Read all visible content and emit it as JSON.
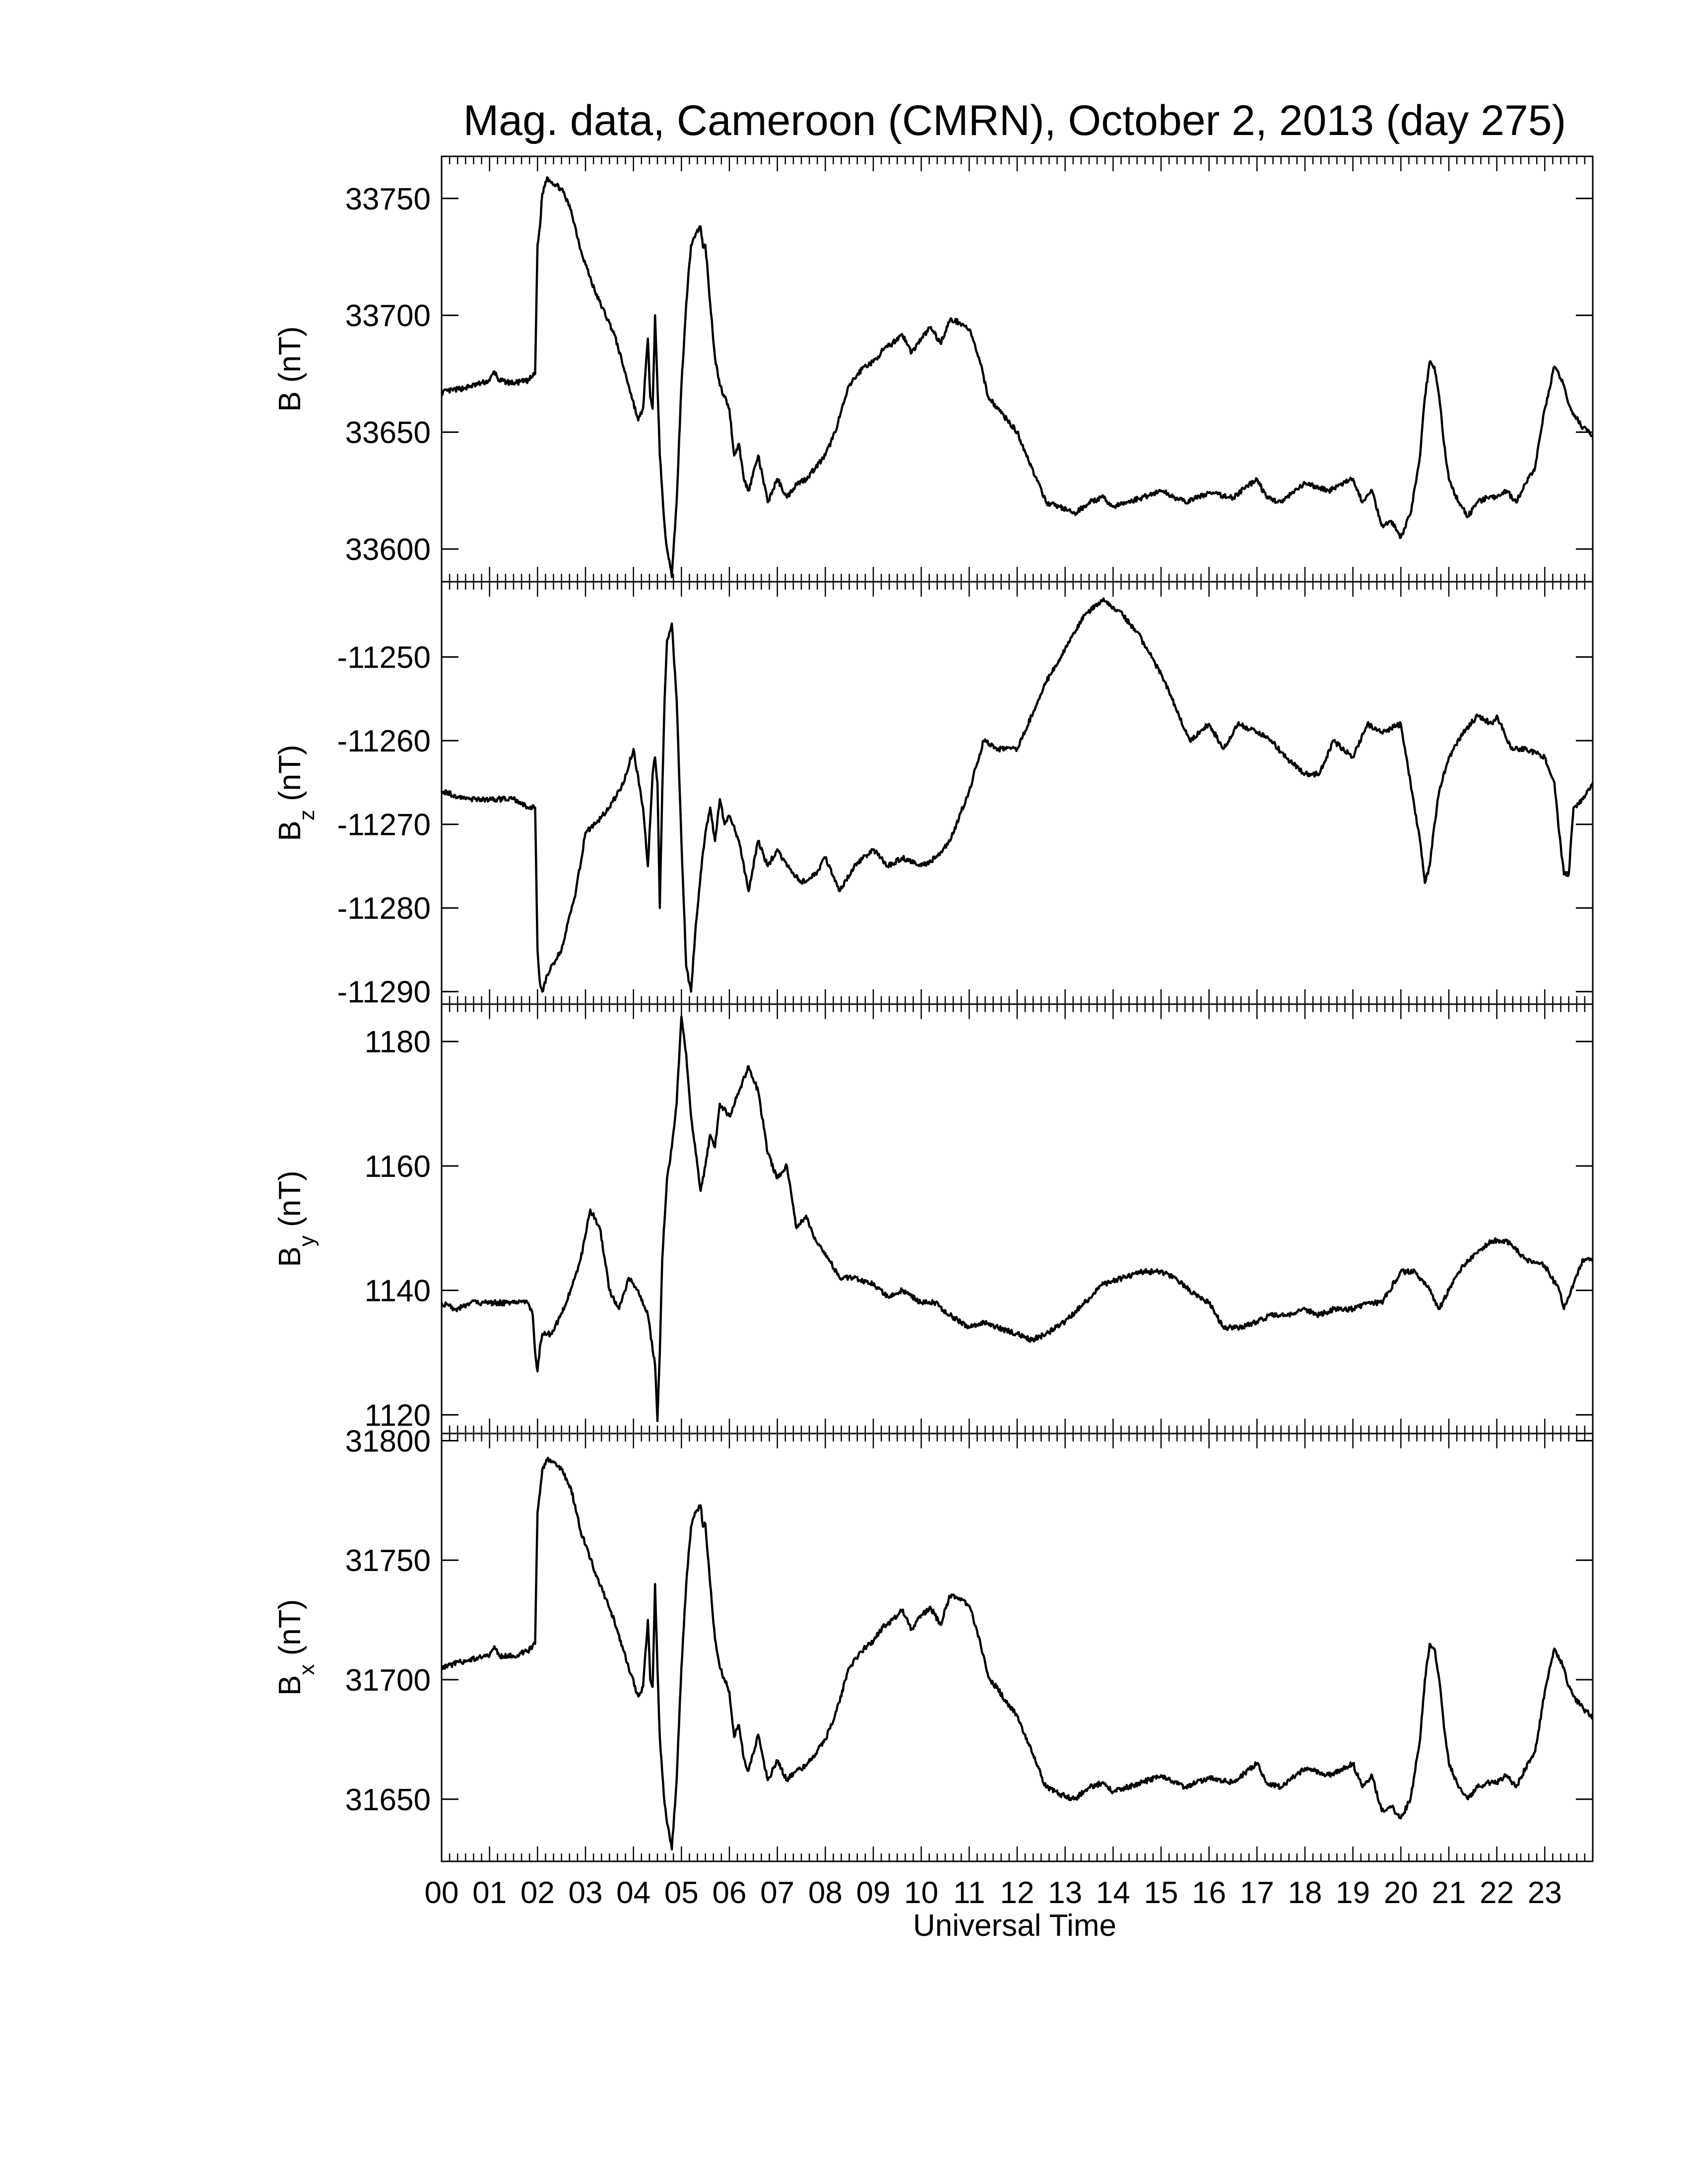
{
  "figure": {
    "title": "Mag. data, Cameroon (CMRN), October 2, 2013 (day 275)",
    "xlabel": "Universal Time",
    "x_tick_labels": [
      "00",
      "01",
      "02",
      "03",
      "04",
      "05",
      "06",
      "07",
      "08",
      "09",
      "10",
      "11",
      "12",
      "13",
      "14",
      "15",
      "16",
      "17",
      "18",
      "19",
      "20",
      "21",
      "22",
      "23"
    ],
    "line_color": "#000000"
  },
  "chart_data": [
    {
      "type": "line",
      "id": "B",
      "ylabel": "B (nT)",
      "ylabel_main": "B",
      "ylabel_sub": "",
      "ylabel_unit": " (nT)",
      "xlim": [
        0,
        24
      ],
      "ylim": [
        33586,
        33768
      ],
      "yticks": [
        33600,
        33650,
        33700,
        33750
      ],
      "x": [
        0,
        0.5,
        1.0,
        1.1,
        1.2,
        1.5,
        1.8,
        1.95,
        2.0,
        2.05,
        2.1,
        2.2,
        2.3,
        2.5,
        2.7,
        2.9,
        3.2,
        3.6,
        3.9,
        4.1,
        4.2,
        4.3,
        4.35,
        4.4,
        4.45,
        4.5,
        4.55,
        4.6,
        4.65,
        4.7,
        4.75,
        4.8,
        4.9,
        5.0,
        5.1,
        5.2,
        5.3,
        5.4,
        5.45,
        5.5,
        5.55,
        5.6,
        5.7,
        5.8,
        5.9,
        6.0,
        6.1,
        6.2,
        6.3,
        6.4,
        6.6,
        6.8,
        7.0,
        7.2,
        7.4,
        7.6,
        7.8,
        8.0,
        8.2,
        8.5,
        8.8,
        9.0,
        9.2,
        9.4,
        9.6,
        9.8,
        10.0,
        10.2,
        10.4,
        10.6,
        10.8,
        11.0,
        11.2,
        11.4,
        11.6,
        11.8,
        12.0,
        12.3,
        12.6,
        12.9,
        13.2,
        13.5,
        13.8,
        14.0,
        14.3,
        14.6,
        15.0,
        15.5,
        16.0,
        16.5,
        17.0,
        17.2,
        17.5,
        18.0,
        18.5,
        19.0,
        19.2,
        19.4,
        19.6,
        19.8,
        20.0,
        20.2,
        20.4,
        20.5,
        20.6,
        20.7,
        20.8,
        20.9,
        21.0,
        21.2,
        21.4,
        21.6,
        21.8,
        22.0,
        22.2,
        22.4,
        22.6,
        22.8,
        23.0,
        23.2,
        23.4,
        23.5,
        23.6,
        23.8,
        24.0
      ],
      "values": [
        33667,
        33669,
        33672,
        33676,
        33672,
        33671,
        33672,
        33675,
        33730,
        33738,
        33752,
        33759,
        33757,
        33754,
        33745,
        33728,
        33710,
        33692,
        33670,
        33655,
        33660,
        33690,
        33665,
        33660,
        33700,
        33670,
        33640,
        33625,
        33610,
        33600,
        33595,
        33588,
        33620,
        33670,
        33705,
        33730,
        33735,
        33738,
        33729,
        33730,
        33718,
        33705,
        33682,
        33670,
        33665,
        33660,
        33640,
        33645,
        33630,
        33625,
        33640,
        33620,
        33630,
        33622,
        33628,
        33630,
        33635,
        33640,
        33650,
        33670,
        33678,
        33680,
        33685,
        33688,
        33692,
        33684,
        33690,
        33695,
        33688,
        33698,
        33697,
        33694,
        33682,
        33665,
        33660,
        33655,
        33650,
        33635,
        33620,
        33618,
        33615,
        33620,
        33622,
        33618,
        33620,
        33622,
        33625,
        33620,
        33624,
        33622,
        33630,
        33622,
        33620,
        33628,
        33625,
        33630,
        33620,
        33625,
        33610,
        33612,
        33605,
        33615,
        33640,
        33665,
        33680,
        33678,
        33665,
        33645,
        33630,
        33620,
        33614,
        33620,
        33622,
        33622,
        33625,
        33620,
        33628,
        33635,
        33660,
        33678,
        33670,
        33662,
        33658,
        33652,
        33648
      ]
    },
    {
      "type": "line",
      "id": "Bz",
      "ylabel": "Bz (nT)",
      "ylabel_main": "B",
      "ylabel_sub": "z",
      "ylabel_unit": " (nT)",
      "xlim": [
        0,
        24
      ],
      "ylim": [
        -11291.5,
        -11241
      ],
      "yticks": [
        -11250,
        -11260,
        -11270,
        -11280,
        -11290
      ],
      "x": [
        0,
        0.5,
        1.0,
        1.5,
        1.8,
        1.95,
        2.0,
        2.05,
        2.1,
        2.2,
        2.5,
        2.8,
        3.0,
        3.2,
        3.5,
        3.8,
        4.0,
        4.2,
        4.3,
        4.4,
        4.45,
        4.5,
        4.55,
        4.6,
        4.65,
        4.7,
        4.8,
        4.9,
        5.0,
        5.1,
        5.2,
        5.3,
        5.4,
        5.5,
        5.6,
        5.7,
        5.8,
        5.9,
        6.0,
        6.2,
        6.4,
        6.6,
        6.8,
        7.0,
        7.2,
        7.5,
        7.8,
        8.0,
        8.3,
        8.6,
        9.0,
        9.3,
        9.6,
        10.0,
        10.3,
        10.6,
        11.0,
        11.3,
        11.6,
        12.0,
        12.3,
        12.6,
        13.0,
        13.4,
        13.8,
        14.0,
        14.2,
        14.5,
        14.8,
        15.0,
        15.3,
        15.6,
        16.0,
        16.3,
        16.6,
        17.0,
        17.3,
        17.6,
        18.0,
        18.3,
        18.6,
        19.0,
        19.3,
        19.6,
        20.0,
        20.2,
        20.4,
        20.5,
        20.6,
        20.7,
        20.8,
        21.0,
        21.3,
        21.6,
        21.9,
        22.0,
        22.3,
        22.6,
        23.0,
        23.2,
        23.3,
        23.4,
        23.5,
        23.6,
        23.8,
        24.0
      ],
      "values": [
        -11266,
        -11267,
        -11267,
        -11267,
        -11268,
        -11268,
        -11285,
        -11289,
        -11290,
        -11288,
        -11285,
        -11278,
        -11271,
        -11270,
        -11268,
        -11265,
        -11261,
        -11268,
        -11275,
        -11264,
        -11262,
        -11265,
        -11280,
        -11266,
        -11255,
        -11248,
        -11246,
        -11255,
        -11272,
        -11287,
        -11290,
        -11282,
        -11276,
        -11271,
        -11268,
        -11272,
        -11267,
        -11270,
        -11269,
        -11272,
        -11278,
        -11272,
        -11275,
        -11273,
        -11275,
        -11277,
        -11276,
        -11274,
        -11278,
        -11275,
        -11273,
        -11275,
        -11274,
        -11275,
        -11274,
        -11272,
        -11266,
        -11260,
        -11261,
        -11261,
        -11257,
        -11253,
        -11249,
        -11245,
        -11243,
        -11244,
        -11245,
        -11247,
        -11250,
        -11252,
        -11256,
        -11260,
        -11258,
        -11261,
        -11258,
        -11259,
        -11260,
        -11262,
        -11264,
        -11264,
        -11260,
        -11262,
        -11258,
        -11259,
        -11258,
        -11265,
        -11272,
        -11277,
        -11275,
        -11270,
        -11266,
        -11262,
        -11259,
        -11257,
        -11258,
        -11257,
        -11261,
        -11261,
        -11262,
        -11265,
        -11271,
        -11276,
        -11276,
        -11268,
        -11267,
        -11265
      ]
    },
    {
      "type": "line",
      "id": "By",
      "ylabel": "By (nT)",
      "ylabel_main": "B",
      "ylabel_sub": "y",
      "ylabel_unit": " (nT)",
      "xlim": [
        0,
        24
      ],
      "ylim": [
        1117,
        1186
      ],
      "yticks": [
        1120,
        1140,
        1160,
        1180
      ],
      "x": [
        0,
        0.3,
        0.6,
        1.0,
        1.5,
        1.8,
        1.9,
        1.95,
        2.0,
        2.05,
        2.1,
        2.3,
        2.6,
        2.9,
        3.1,
        3.3,
        3.5,
        3.7,
        3.9,
        4.1,
        4.3,
        4.45,
        4.5,
        4.55,
        4.6,
        4.7,
        4.8,
        4.9,
        5.0,
        5.1,
        5.2,
        5.3,
        5.4,
        5.5,
        5.6,
        5.7,
        5.8,
        6.0,
        6.2,
        6.4,
        6.6,
        6.8,
        7.0,
        7.2,
        7.4,
        7.6,
        7.8,
        8.0,
        8.3,
        8.6,
        9.0,
        9.3,
        9.6,
        10.0,
        10.3,
        10.6,
        11.0,
        11.3,
        11.6,
        12.0,
        12.3,
        12.6,
        13.0,
        13.4,
        13.8,
        14.2,
        14.6,
        15.0,
        15.3,
        15.6,
        16.0,
        16.3,
        16.6,
        17.0,
        17.3,
        17.6,
        18.0,
        18.3,
        18.6,
        19.0,
        19.3,
        19.6,
        20.0,
        20.3,
        20.6,
        20.8,
        21.0,
        21.3,
        21.6,
        21.9,
        22.2,
        22.6,
        23.0,
        23.3,
        23.4,
        23.6,
        23.8,
        24.0
      ],
      "values": [
        1138,
        1137,
        1138,
        1138,
        1138,
        1138,
        1136,
        1130,
        1127,
        1131,
        1133,
        1133,
        1138,
        1145,
        1153,
        1150,
        1140,
        1137,
        1142,
        1140,
        1136,
        1128,
        1119,
        1130,
        1145,
        1158,
        1163,
        1170,
        1184,
        1178,
        1168,
        1162,
        1156,
        1160,
        1165,
        1163,
        1170,
        1168,
        1172,
        1176,
        1172,
        1162,
        1158,
        1160,
        1150,
        1152,
        1148,
        1146,
        1142,
        1142,
        1141,
        1139,
        1140,
        1138,
        1138,
        1136,
        1134,
        1135,
        1134,
        1133,
        1132,
        1133,
        1135,
        1138,
        1141,
        1142,
        1143,
        1143,
        1142,
        1140,
        1138,
        1134,
        1134,
        1135,
        1136,
        1136,
        1137,
        1136,
        1137,
        1137,
        1138,
        1138,
        1143,
        1143,
        1140,
        1137,
        1140,
        1144,
        1146,
        1148,
        1148,
        1145,
        1144,
        1140,
        1137,
        1141,
        1145,
        1145
      ]
    },
    {
      "type": "line",
      "id": "Bx",
      "ylabel": "Bx (nT)",
      "ylabel_main": "B",
      "ylabel_sub": "x",
      "ylabel_unit": " (nT)",
      "xlim": [
        0,
        24
      ],
      "ylim": [
        31624,
        31803
      ],
      "yticks": [
        31650,
        31700,
        31750,
        31800
      ],
      "x": [
        0,
        0.5,
        1.0,
        1.1,
        1.2,
        1.5,
        1.8,
        1.95,
        2.0,
        2.05,
        2.1,
        2.2,
        2.3,
        2.5,
        2.7,
        2.9,
        3.2,
        3.6,
        3.9,
        4.1,
        4.2,
        4.3,
        4.35,
        4.4,
        4.45,
        4.5,
        4.55,
        4.6,
        4.65,
        4.7,
        4.75,
        4.8,
        4.9,
        5.0,
        5.1,
        5.2,
        5.3,
        5.4,
        5.45,
        5.5,
        5.55,
        5.6,
        5.7,
        5.8,
        5.9,
        6.0,
        6.1,
        6.2,
        6.3,
        6.4,
        6.6,
        6.8,
        7.0,
        7.2,
        7.4,
        7.6,
        7.8,
        8.0,
        8.2,
        8.5,
        8.8,
        9.0,
        9.2,
        9.4,
        9.6,
        9.8,
        10.0,
        10.2,
        10.4,
        10.6,
        10.8,
        11.0,
        11.2,
        11.4,
        11.6,
        11.8,
        12.0,
        12.3,
        12.6,
        12.9,
        13.2,
        13.5,
        13.8,
        14.0,
        14.3,
        14.6,
        15.0,
        15.5,
        16.0,
        16.5,
        17.0,
        17.2,
        17.5,
        18.0,
        18.5,
        19.0,
        19.2,
        19.4,
        19.6,
        19.8,
        20.0,
        20.2,
        20.4,
        20.5,
        20.6,
        20.7,
        20.8,
        20.9,
        21.0,
        21.2,
        21.4,
        21.6,
        21.8,
        22.0,
        22.2,
        22.4,
        22.6,
        22.8,
        23.0,
        23.2,
        23.4,
        23.5,
        23.6,
        23.8,
        24.0
      ],
      "values": [
        31705,
        31708,
        31710,
        31714,
        31710,
        31710,
        31712,
        31715,
        31770,
        31778,
        31788,
        31792,
        31791,
        31788,
        31780,
        31762,
        31745,
        31725,
        31705,
        31693,
        31697,
        31725,
        31700,
        31697,
        31740,
        31705,
        31676,
        31661,
        31648,
        31640,
        31635,
        31629,
        31658,
        31705,
        31740,
        31764,
        31770,
        31773,
        31764,
        31765,
        31752,
        31740,
        31717,
        31705,
        31700,
        31695,
        31676,
        31681,
        31667,
        31662,
        31677,
        31658,
        31666,
        31658,
        31662,
        31664,
        31669,
        31675,
        31685,
        31705,
        31713,
        31716,
        31722,
        31725,
        31729,
        31721,
        31727,
        31730,
        31723,
        31735,
        31734,
        31731,
        31718,
        31701,
        31696,
        31690,
        31685,
        31670,
        31655,
        31652,
        31650,
        31655,
        31657,
        31653,
        31655,
        31657,
        31660,
        31655,
        31659,
        31657,
        31665,
        31657,
        31655,
        31663,
        31660,
        31665,
        31655,
        31660,
        31645,
        31647,
        31642,
        31650,
        31675,
        31700,
        31715,
        31713,
        31700,
        31680,
        31665,
        31655,
        31650,
        31655,
        31657,
        31657,
        31660,
        31655,
        31663,
        31670,
        31695,
        31713,
        31705,
        31697,
        31693,
        31688,
        31684
      ]
    }
  ]
}
